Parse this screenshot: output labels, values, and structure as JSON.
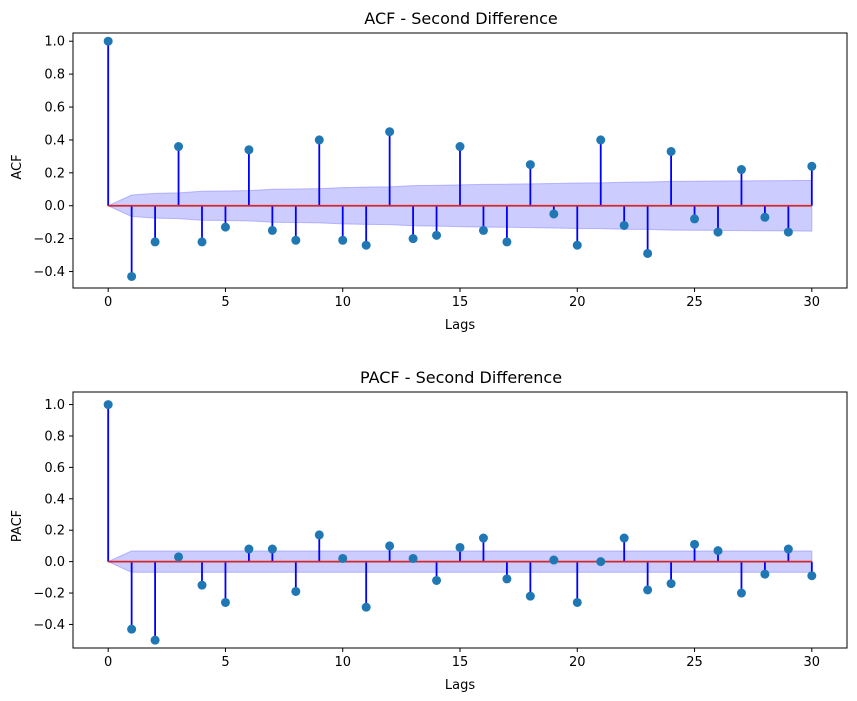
{
  "colors": {
    "stem": "#0000ff",
    "marker": "#1f77b4",
    "baseline": "#d62728",
    "band_fill": "#8080ff",
    "axis": "#000000"
  },
  "chart_data": [
    {
      "type": "stem",
      "title": "ACF - Second Difference",
      "xlabel": "Lags",
      "ylabel": "ACF",
      "xlim": [
        -1.5,
        31.5
      ],
      "ylim": [
        -0.5,
        1.05
      ],
      "xticks": [
        "0",
        "5",
        "10",
        "15",
        "20",
        "25",
        "30"
      ],
      "yticks": [
        "−0.4",
        "−0.2",
        "0.0",
        "0.2",
        "0.4",
        "0.6",
        "0.8",
        "1.0"
      ],
      "grid": false,
      "x": [
        0,
        1,
        2,
        3,
        4,
        5,
        6,
        7,
        8,
        9,
        10,
        11,
        12,
        13,
        14,
        15,
        16,
        17,
        18,
        19,
        20,
        21,
        22,
        23,
        24,
        25,
        26,
        27,
        28,
        29,
        30
      ],
      "values": [
        1.0,
        -0.43,
        -0.22,
        0.36,
        -0.22,
        -0.13,
        0.34,
        -0.15,
        -0.21,
        0.4,
        -0.21,
        -0.24,
        0.45,
        -0.2,
        -0.18,
        0.36,
        -0.15,
        -0.22,
        0.25,
        -0.05,
        -0.24,
        0.4,
        -0.12,
        -0.29,
        0.33,
        -0.08,
        -0.16,
        0.22,
        -0.07,
        -0.16,
        0.24
      ],
      "confidence_band": [
        0.0,
        0.065,
        0.075,
        0.078,
        0.088,
        0.09,
        0.092,
        0.1,
        0.102,
        0.104,
        0.11,
        0.113,
        0.115,
        0.122,
        0.124,
        0.127,
        0.13,
        0.131,
        0.133,
        0.135,
        0.138,
        0.139,
        0.143,
        0.144,
        0.148,
        0.149,
        0.15,
        0.151,
        0.152,
        0.153,
        0.154
      ]
    },
    {
      "type": "stem",
      "title": "PACF - Second Difference",
      "xlabel": "Lags",
      "ylabel": "PACF",
      "xlim": [
        -1.5,
        31.5
      ],
      "ylim": [
        -0.55,
        1.08
      ],
      "xticks": [
        "0",
        "5",
        "10",
        "15",
        "20",
        "25",
        "30"
      ],
      "yticks": [
        "−0.4",
        "−0.2",
        "0.0",
        "0.2",
        "0.4",
        "0.6",
        "0.8",
        "1.0"
      ],
      "grid": false,
      "x": [
        0,
        1,
        2,
        3,
        4,
        5,
        6,
        7,
        8,
        9,
        10,
        11,
        12,
        13,
        14,
        15,
        16,
        17,
        18,
        19,
        20,
        21,
        22,
        23,
        24,
        25,
        26,
        27,
        28,
        29,
        30
      ],
      "values": [
        1.0,
        -0.43,
        -0.5,
        0.03,
        -0.15,
        -0.26,
        0.08,
        0.08,
        -0.19,
        0.17,
        0.02,
        -0.29,
        0.1,
        0.02,
        -0.12,
        0.09,
        0.15,
        -0.11,
        -0.22,
        0.01,
        -0.26,
        0.0,
        0.15,
        -0.18,
        -0.14,
        0.11,
        0.07,
        -0.2,
        -0.08,
        0.08,
        -0.09
      ],
      "confidence_band": [
        0.0,
        0.068,
        0.068,
        0.068,
        0.068,
        0.068,
        0.068,
        0.068,
        0.068,
        0.068,
        0.068,
        0.068,
        0.068,
        0.068,
        0.068,
        0.068,
        0.068,
        0.068,
        0.068,
        0.068,
        0.068,
        0.068,
        0.068,
        0.068,
        0.068,
        0.068,
        0.068,
        0.068,
        0.068,
        0.068,
        0.068
      ]
    }
  ]
}
